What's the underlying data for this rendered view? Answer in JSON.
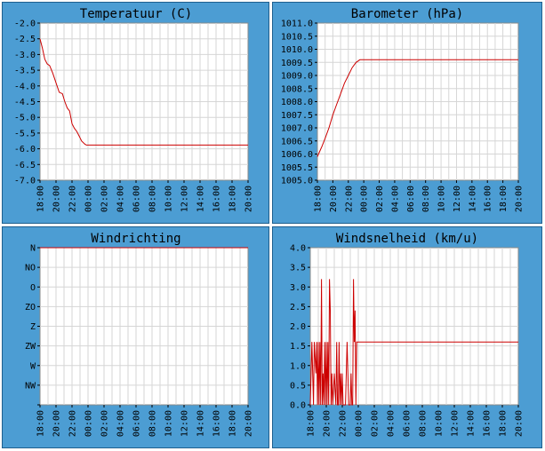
{
  "chart_data": [
    {
      "type": "line",
      "title": "Temperatuur (C)",
      "xlabel": "",
      "ylabel": "",
      "categories": [
        "18:00",
        "20:00",
        "22:00",
        "00:00",
        "02:00",
        "04:00",
        "06:00",
        "08:00",
        "10:00",
        "12:00",
        "14:00",
        "16:00",
        "18:00",
        "20:00"
      ],
      "y_ticks": [
        "-2.0",
        "-2.5",
        "-3.0",
        "-3.5",
        "-4.0",
        "-4.5",
        "-5.0",
        "-5.5",
        "-6.0",
        "-6.5",
        "-7.0"
      ],
      "ylim": [
        -7.0,
        -2.0
      ],
      "xlim": [
        0,
        26
      ],
      "series": [
        {
          "name": "Temperatuur",
          "x": [
            0,
            0.3,
            0.6,
            0.9,
            1.2,
            1.6,
            2.0,
            2.4,
            2.8,
            3.1,
            3.4,
            3.7,
            4.0,
            4.3,
            4.6,
            4.9,
            5.2,
            5.6,
            5.8,
            6.0,
            26.0
          ],
          "values": [
            -2.5,
            -2.8,
            -3.15,
            -3.3,
            -3.35,
            -3.6,
            -3.9,
            -4.2,
            -4.25,
            -4.5,
            -4.7,
            -4.8,
            -5.2,
            -5.35,
            -5.45,
            -5.6,
            -5.75,
            -5.85,
            -5.88,
            -5.88,
            -5.88
          ]
        }
      ]
    },
    {
      "type": "line",
      "title": "Barometer (hPa)",
      "xlabel": "",
      "ylabel": "",
      "categories": [
        "18:00",
        "20:00",
        "22:00",
        "00:00",
        "02:00",
        "04:00",
        "06:00",
        "08:00",
        "10:00",
        "12:00",
        "14:00",
        "16:00",
        "18:00",
        "20:00"
      ],
      "y_ticks": [
        "1011.0",
        "1010.5",
        "1010.0",
        "1009.5",
        "1009.0",
        "1008.5",
        "1008.0",
        "1007.5",
        "1007.0",
        "1006.5",
        "1006.0",
        "1005.5",
        "1005.0"
      ],
      "ylim": [
        1005.0,
        1011.0
      ],
      "xlim": [
        0,
        26
      ],
      "series": [
        {
          "name": "Barometer",
          "x": [
            0,
            0.3,
            0.6,
            1.0,
            1.5,
            2.0,
            2.5,
            3.0,
            3.5,
            4.0,
            4.5,
            5.0,
            5.5,
            6.0,
            26.0
          ],
          "values": [
            1005.9,
            1006.1,
            1006.3,
            1006.6,
            1007.0,
            1007.5,
            1007.9,
            1008.3,
            1008.7,
            1009.0,
            1009.3,
            1009.5,
            1009.6,
            1009.6,
            1009.6
          ]
        }
      ]
    },
    {
      "type": "line",
      "title": "Windrichting",
      "xlabel": "",
      "ylabel": "",
      "categories": [
        "18:00",
        "20:00",
        "22:00",
        "00:00",
        "02:00",
        "04:00",
        "06:00",
        "08:00",
        "10:00",
        "12:00",
        "14:00",
        "16:00",
        "18:00",
        "20:00"
      ],
      "y_ticks": [
        "N",
        "NO",
        "O",
        "ZO",
        "Z",
        "ZW",
        "W",
        "NW",
        ""
      ],
      "ylim": [
        0,
        8
      ],
      "xlim": [
        0,
        26
      ],
      "series": [
        {
          "name": "Windrichting",
          "x": [
            0,
            26
          ],
          "values": [
            8,
            8
          ]
        }
      ]
    },
    {
      "type": "line",
      "title": "Windsnelheid (km/u)",
      "xlabel": "",
      "ylabel": "",
      "categories": [
        "18:00",
        "20:00",
        "22:00",
        "00:00",
        "02:00",
        "04:00",
        "06:00",
        "08:00",
        "10:00",
        "12:00",
        "14:00",
        "16:00",
        "18:00",
        "20:00"
      ],
      "y_ticks": [
        "4.0",
        "3.5",
        "3.0",
        "2.5",
        "2.0",
        "1.5",
        "1.0",
        "0.5",
        "0.0"
      ],
      "ylim": [
        0.0,
        4.0
      ],
      "xlim": [
        0,
        26
      ],
      "series": [
        {
          "name": "Windsnelheid",
          "x": [
            0,
            0.2,
            0.4,
            0.5,
            0.7,
            0.8,
            0.9,
            1.0,
            1.1,
            1.2,
            1.3,
            1.4,
            1.5,
            1.6,
            1.7,
            1.8,
            1.9,
            2.0,
            2.1,
            2.2,
            2.3,
            2.4,
            2.5,
            2.6,
            2.7,
            2.8,
            3.0,
            3.2,
            3.3,
            3.4,
            3.5,
            3.6,
            3.7,
            3.8,
            3.9,
            4.0,
            4.1,
            4.2,
            4.4,
            4.6,
            4.8,
            5.0,
            5.1,
            5.2,
            5.3,
            5.4,
            5.5,
            5.6,
            5.7,
            5.8,
            6.0,
            26.0
          ],
          "values": [
            0,
            1.6,
            0,
            1.6,
            0.8,
            1.6,
            0,
            1.6,
            0,
            1.6,
            0,
            3.2,
            0,
            0.8,
            0,
            1.6,
            0,
            1.6,
            0,
            1.6,
            0,
            3.2,
            2.4,
            0,
            0.8,
            0,
            0.8,
            0,
            1.6,
            0,
            0,
            1.6,
            0,
            0.8,
            0,
            0.8,
            0,
            0,
            0,
            1.6,
            0,
            0,
            0.8,
            0,
            0,
            3.2,
            1.6,
            2.4,
            0,
            1.6,
            1.6,
            1.6
          ]
        }
      ]
    }
  ]
}
